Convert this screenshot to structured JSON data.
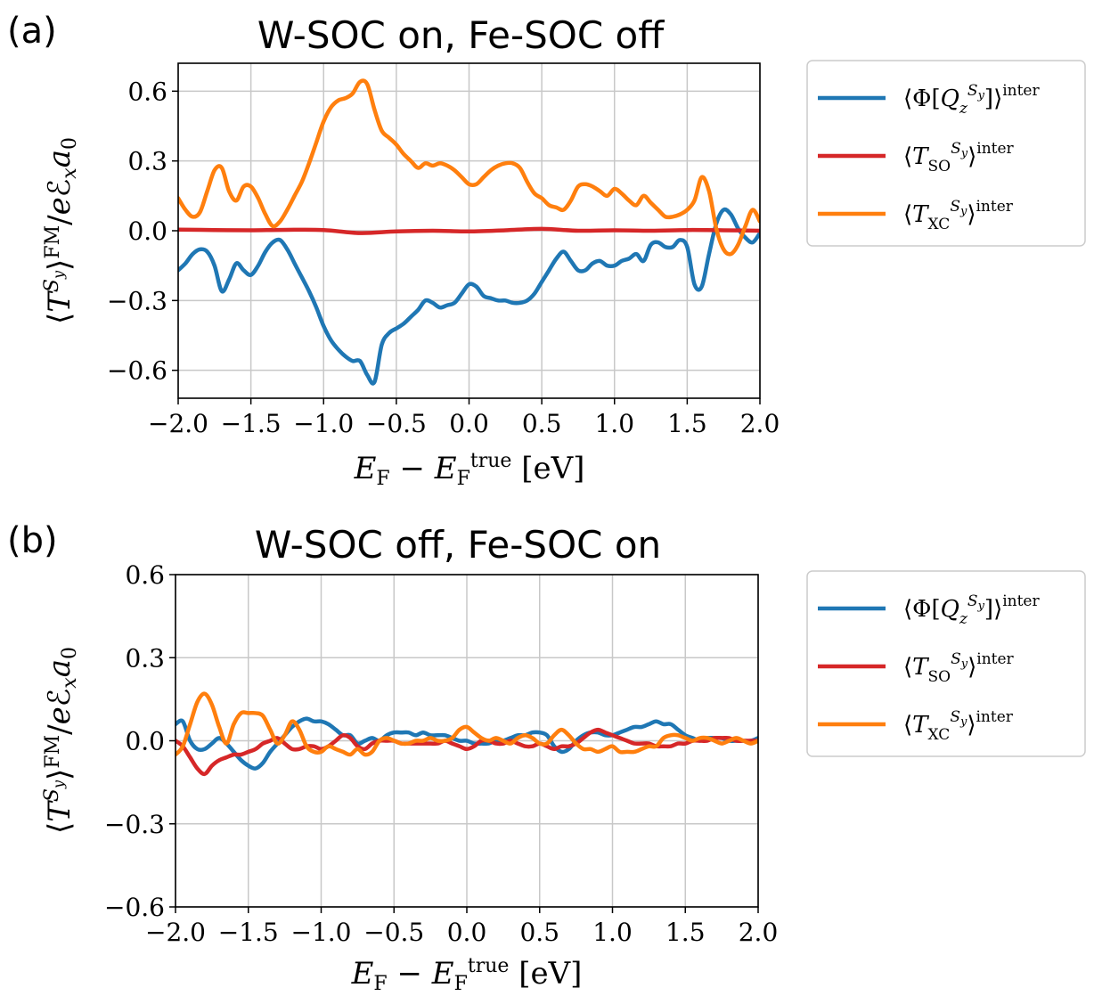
{
  "chart_data": [
    {
      "type": "line",
      "panel_label": "(a)",
      "title": "W-SOC on, Fe-SOC off",
      "xlabel": "E_F − E_F^true [eV]",
      "ylabel": "⟨T^{S_y}⟩^FM / eℰ_x a_0",
      "xlim": [
        -2.0,
        2.0
      ],
      "ylim": [
        -0.72,
        0.72
      ],
      "xticks": [
        -2.0,
        -1.5,
        -1.0,
        -0.5,
        0.0,
        0.5,
        1.0,
        1.5,
        2.0
      ],
      "xtick_labels": [
        "−2.0",
        "−1.5",
        "−1.0",
        "−0.5",
        "0.0",
        "0.5",
        "1.0",
        "1.5",
        "2.0"
      ],
      "yticks": [
        -0.6,
        -0.3,
        0.0,
        0.3,
        0.6
      ],
      "ytick_labels": [
        "−0.6",
        "−0.3",
        "0.0",
        "0.3",
        "0.6"
      ],
      "grid": true,
      "legend_position": "outside-right",
      "series": [
        {
          "name": "⟨Φ[Q_z^{S_y}]⟩^inter",
          "color": "#1f77b4",
          "x": [
            -2.0,
            -1.95,
            -1.9,
            -1.85,
            -1.8,
            -1.75,
            -1.7,
            -1.65,
            -1.6,
            -1.55,
            -1.5,
            -1.45,
            -1.4,
            -1.35,
            -1.3,
            -1.25,
            -1.2,
            -1.15,
            -1.1,
            -1.05,
            -1.0,
            -0.95,
            -0.9,
            -0.85,
            -0.8,
            -0.75,
            -0.7,
            -0.65,
            -0.6,
            -0.55,
            -0.5,
            -0.45,
            -0.4,
            -0.35,
            -0.3,
            -0.25,
            -0.2,
            -0.15,
            -0.1,
            -0.05,
            0.0,
            0.05,
            0.1,
            0.15,
            0.2,
            0.25,
            0.3,
            0.35,
            0.4,
            0.45,
            0.5,
            0.55,
            0.6,
            0.65,
            0.7,
            0.75,
            0.8,
            0.85,
            0.9,
            0.95,
            1.0,
            1.05,
            1.1,
            1.15,
            1.2,
            1.25,
            1.3,
            1.35,
            1.4,
            1.45,
            1.5,
            1.55,
            1.6,
            1.65,
            1.7,
            1.75,
            1.8,
            1.85,
            1.9,
            1.95,
            2.0
          ],
          "y": [
            -0.17,
            -0.14,
            -0.1,
            -0.08,
            -0.09,
            -0.15,
            -0.26,
            -0.21,
            -0.14,
            -0.17,
            -0.19,
            -0.15,
            -0.09,
            -0.05,
            -0.04,
            -0.08,
            -0.14,
            -0.2,
            -0.26,
            -0.33,
            -0.41,
            -0.47,
            -0.51,
            -0.54,
            -0.56,
            -0.56,
            -0.62,
            -0.65,
            -0.49,
            -0.44,
            -0.42,
            -0.4,
            -0.37,
            -0.34,
            -0.3,
            -0.31,
            -0.33,
            -0.32,
            -0.31,
            -0.27,
            -0.23,
            -0.24,
            -0.28,
            -0.29,
            -0.3,
            -0.3,
            -0.31,
            -0.31,
            -0.3,
            -0.27,
            -0.22,
            -0.17,
            -0.12,
            -0.09,
            -0.13,
            -0.17,
            -0.17,
            -0.14,
            -0.13,
            -0.15,
            -0.15,
            -0.13,
            -0.12,
            -0.1,
            -0.13,
            -0.06,
            -0.05,
            -0.07,
            -0.07,
            -0.04,
            -0.07,
            -0.23,
            -0.24,
            -0.1,
            0.03,
            0.09,
            0.07,
            0.01,
            -0.03,
            -0.05,
            -0.01
          ]
        },
        {
          "name": "⟨T_SO^{S_y}⟩^inter",
          "color": "#d62728",
          "x": [
            -2.0,
            -1.75,
            -1.5,
            -1.25,
            -1.0,
            -0.75,
            -0.5,
            -0.25,
            0.0,
            0.25,
            0.5,
            0.75,
            1.0,
            1.25,
            1.5,
            1.75,
            2.0
          ],
          "y": [
            0.005,
            0.003,
            0.002,
            0.004,
            0.003,
            -0.01,
            -0.003,
            0.0,
            -0.003,
            0.002,
            0.008,
            0.0,
            0.002,
            0.0,
            0.003,
            0.002,
            0.0
          ]
        },
        {
          "name": "⟨T_XC^{S_y}⟩^inter",
          "color": "#ff7f0e",
          "x": [
            -2.0,
            -1.95,
            -1.9,
            -1.85,
            -1.8,
            -1.75,
            -1.7,
            -1.65,
            -1.6,
            -1.55,
            -1.5,
            -1.45,
            -1.4,
            -1.35,
            -1.3,
            -1.25,
            -1.2,
            -1.15,
            -1.1,
            -1.05,
            -1.0,
            -0.95,
            -0.9,
            -0.85,
            -0.8,
            -0.75,
            -0.7,
            -0.65,
            -0.6,
            -0.55,
            -0.5,
            -0.45,
            -0.4,
            -0.35,
            -0.3,
            -0.25,
            -0.2,
            -0.15,
            -0.1,
            -0.05,
            0.0,
            0.05,
            0.1,
            0.15,
            0.2,
            0.25,
            0.3,
            0.35,
            0.4,
            0.45,
            0.5,
            0.55,
            0.6,
            0.65,
            0.7,
            0.75,
            0.8,
            0.85,
            0.9,
            0.95,
            1.0,
            1.05,
            1.1,
            1.15,
            1.2,
            1.25,
            1.3,
            1.35,
            1.4,
            1.45,
            1.5,
            1.55,
            1.6,
            1.65,
            1.7,
            1.75,
            1.8,
            1.85,
            1.9,
            1.95,
            2.0
          ],
          "y": [
            0.14,
            0.09,
            0.06,
            0.08,
            0.17,
            0.26,
            0.27,
            0.17,
            0.13,
            0.19,
            0.19,
            0.14,
            0.07,
            0.02,
            0.04,
            0.09,
            0.15,
            0.21,
            0.29,
            0.38,
            0.47,
            0.53,
            0.56,
            0.57,
            0.59,
            0.64,
            0.63,
            0.52,
            0.43,
            0.4,
            0.37,
            0.33,
            0.3,
            0.27,
            0.29,
            0.28,
            0.29,
            0.28,
            0.26,
            0.23,
            0.2,
            0.2,
            0.23,
            0.26,
            0.28,
            0.29,
            0.29,
            0.27,
            0.21,
            0.16,
            0.14,
            0.11,
            0.1,
            0.09,
            0.13,
            0.19,
            0.2,
            0.19,
            0.17,
            0.15,
            0.18,
            0.16,
            0.13,
            0.11,
            0.15,
            0.12,
            0.09,
            0.06,
            0.06,
            0.07,
            0.09,
            0.13,
            0.23,
            0.17,
            0.01,
            -0.08,
            -0.1,
            -0.06,
            0.02,
            0.09,
            0.04
          ]
        }
      ]
    },
    {
      "type": "line",
      "panel_label": "(b)",
      "title": "W-SOC off, Fe-SOC on",
      "xlabel": "E_F − E_F^true [eV]",
      "ylabel": "⟨T^{S_y}⟩^FM / eℰ_x a_0",
      "xlim": [
        -2.0,
        2.0
      ],
      "ylim": [
        -0.6,
        0.6
      ],
      "xticks": [
        -2.0,
        -1.5,
        -1.0,
        -0.5,
        0.0,
        0.5,
        1.0,
        1.5,
        2.0
      ],
      "xtick_labels": [
        "−2.0",
        "−1.5",
        "−1.0",
        "−0.5",
        "0.0",
        "0.5",
        "1.0",
        "1.5",
        "2.0"
      ],
      "yticks": [
        -0.6,
        -0.3,
        0.0,
        0.3,
        0.6
      ],
      "ytick_labels": [
        "−0.6",
        "−0.3",
        "0.0",
        "0.3",
        "0.6"
      ],
      "grid": true,
      "legend_position": "outside-right",
      "series": [
        {
          "name": "⟨Φ[Q_z^{S_y}]⟩^inter",
          "color": "#1f77b4",
          "x": [
            -2.0,
            -1.95,
            -1.9,
            -1.85,
            -1.8,
            -1.75,
            -1.7,
            -1.65,
            -1.6,
            -1.55,
            -1.5,
            -1.45,
            -1.4,
            -1.35,
            -1.3,
            -1.25,
            -1.2,
            -1.15,
            -1.1,
            -1.05,
            -1.0,
            -0.95,
            -0.9,
            -0.85,
            -0.8,
            -0.75,
            -0.7,
            -0.65,
            -0.6,
            -0.55,
            -0.5,
            -0.45,
            -0.4,
            -0.35,
            -0.3,
            -0.25,
            -0.2,
            -0.15,
            -0.1,
            -0.05,
            0.0,
            0.05,
            0.1,
            0.15,
            0.2,
            0.25,
            0.3,
            0.35,
            0.4,
            0.45,
            0.5,
            0.55,
            0.6,
            0.65,
            0.7,
            0.75,
            0.8,
            0.85,
            0.9,
            0.95,
            1.0,
            1.05,
            1.1,
            1.15,
            1.2,
            1.25,
            1.3,
            1.35,
            1.4,
            1.45,
            1.5,
            1.55,
            1.6,
            1.65,
            1.7,
            1.75,
            1.8,
            1.85,
            1.9,
            1.95,
            2.0
          ],
          "y": [
            0.06,
            0.07,
            0.0,
            -0.03,
            -0.03,
            -0.01,
            0.01,
            -0.01,
            -0.04,
            -0.07,
            -0.09,
            -0.1,
            -0.08,
            -0.04,
            -0.01,
            0.02,
            0.05,
            0.07,
            0.08,
            0.07,
            0.07,
            0.06,
            0.04,
            0.02,
            0.02,
            -0.01,
            0.0,
            0.01,
            0.0,
            0.02,
            0.03,
            0.03,
            0.03,
            0.02,
            0.03,
            0.02,
            0.02,
            0.02,
            0.01,
            0.0,
            0.0,
            -0.01,
            -0.01,
            -0.01,
            0.0,
            0.0,
            0.01,
            0.02,
            0.02,
            0.03,
            0.03,
            0.02,
            -0.02,
            -0.04,
            -0.03,
            0.0,
            0.02,
            0.03,
            0.03,
            0.02,
            0.02,
            0.03,
            0.04,
            0.05,
            0.05,
            0.06,
            0.07,
            0.06,
            0.06,
            0.04,
            0.02,
            0.01,
            0.0,
            0.01,
            0.01,
            0.01,
            0.0,
            0.0,
            0.0,
            0.0,
            0.01
          ]
        },
        {
          "name": "⟨T_SO^{S_y}⟩^inter",
          "color": "#d62728",
          "x": [
            -2.0,
            -1.95,
            -1.9,
            -1.85,
            -1.8,
            -1.75,
            -1.7,
            -1.65,
            -1.6,
            -1.55,
            -1.5,
            -1.45,
            -1.4,
            -1.35,
            -1.3,
            -1.25,
            -1.2,
            -1.15,
            -1.1,
            -1.05,
            -1.0,
            -0.95,
            -0.9,
            -0.85,
            -0.8,
            -0.75,
            -0.7,
            -0.65,
            -0.6,
            -0.55,
            -0.5,
            -0.45,
            -0.4,
            -0.35,
            -0.3,
            -0.25,
            -0.2,
            -0.15,
            -0.1,
            -0.05,
            0.0,
            0.05,
            0.1,
            0.15,
            0.2,
            0.25,
            0.3,
            0.35,
            0.4,
            0.45,
            0.5,
            0.55,
            0.6,
            0.65,
            0.7,
            0.75,
            0.8,
            0.85,
            0.9,
            0.95,
            1.0,
            1.05,
            1.1,
            1.15,
            1.2,
            1.25,
            1.3,
            1.35,
            1.4,
            1.45,
            1.5,
            1.55,
            1.6,
            1.65,
            1.7,
            1.75,
            1.8,
            1.85,
            1.9,
            1.95,
            2.0
          ],
          "y": [
            0.0,
            -0.02,
            -0.06,
            -0.1,
            -0.12,
            -0.09,
            -0.07,
            -0.06,
            -0.05,
            -0.05,
            -0.04,
            -0.03,
            -0.01,
            0.0,
            0.01,
            -0.01,
            -0.03,
            -0.03,
            -0.02,
            -0.02,
            -0.03,
            -0.02,
            0.0,
            0.02,
            0.01,
            -0.02,
            -0.03,
            -0.01,
            0.0,
            0.0,
            0.0,
            -0.01,
            -0.01,
            -0.01,
            -0.01,
            -0.01,
            -0.01,
            0.0,
            -0.01,
            -0.02,
            -0.03,
            -0.02,
            0.0,
            0.0,
            -0.01,
            -0.01,
            0.0,
            -0.01,
            -0.02,
            -0.02,
            -0.01,
            -0.02,
            -0.03,
            -0.02,
            -0.02,
            -0.01,
            0.01,
            0.03,
            0.04,
            0.03,
            0.02,
            0.01,
            0.0,
            -0.01,
            -0.01,
            -0.01,
            -0.02,
            -0.02,
            -0.02,
            -0.01,
            -0.01,
            0.0,
            0.0,
            0.0,
            0.01,
            0.01,
            0.01,
            0.0,
            0.0,
            0.0,
            0.0
          ]
        },
        {
          "name": "⟨T_XC^{S_y}⟩^inter",
          "color": "#ff7f0e",
          "x": [
            -2.0,
            -1.95,
            -1.9,
            -1.85,
            -1.8,
            -1.75,
            -1.7,
            -1.65,
            -1.6,
            -1.55,
            -1.5,
            -1.45,
            -1.4,
            -1.35,
            -1.3,
            -1.25,
            -1.2,
            -1.15,
            -1.1,
            -1.05,
            -1.0,
            -0.95,
            -0.9,
            -0.85,
            -0.8,
            -0.75,
            -0.7,
            -0.65,
            -0.6,
            -0.55,
            -0.5,
            -0.45,
            -0.4,
            -0.35,
            -0.3,
            -0.25,
            -0.2,
            -0.15,
            -0.1,
            -0.05,
            0.0,
            0.05,
            0.1,
            0.15,
            0.2,
            0.25,
            0.3,
            0.35,
            0.4,
            0.45,
            0.5,
            0.55,
            0.6,
            0.65,
            0.7,
            0.75,
            0.8,
            0.85,
            0.9,
            0.95,
            1.0,
            1.05,
            1.1,
            1.15,
            1.2,
            1.25,
            1.3,
            1.35,
            1.4,
            1.45,
            1.5,
            1.55,
            1.6,
            1.65,
            1.7,
            1.75,
            1.8,
            1.85,
            1.9,
            1.95,
            2.0
          ],
          "y": [
            -0.05,
            -0.02,
            0.06,
            0.14,
            0.17,
            0.13,
            0.05,
            -0.01,
            0.06,
            0.1,
            0.1,
            0.1,
            0.09,
            0.04,
            -0.01,
            0.02,
            0.07,
            0.04,
            -0.02,
            -0.04,
            -0.04,
            -0.02,
            -0.03,
            -0.04,
            -0.05,
            -0.03,
            -0.05,
            -0.04,
            0.0,
            0.01,
            0.0,
            -0.01,
            -0.01,
            0.0,
            0.0,
            0.01,
            0.0,
            0.0,
            0.01,
            0.04,
            0.05,
            0.03,
            0.01,
            0.0,
            0.01,
            0.0,
            -0.01,
            0.01,
            0.02,
            0.01,
            -0.01,
            -0.01,
            0.02,
            0.04,
            0.02,
            -0.01,
            -0.03,
            -0.03,
            -0.04,
            -0.03,
            -0.02,
            -0.04,
            -0.04,
            -0.04,
            -0.03,
            -0.02,
            -0.02,
            0.01,
            0.02,
            0.02,
            0.01,
            0.0,
            0.01,
            0.01,
            0.0,
            -0.01,
            0.0,
            0.01,
            0.0,
            -0.01,
            0.0
          ]
        }
      ]
    }
  ]
}
